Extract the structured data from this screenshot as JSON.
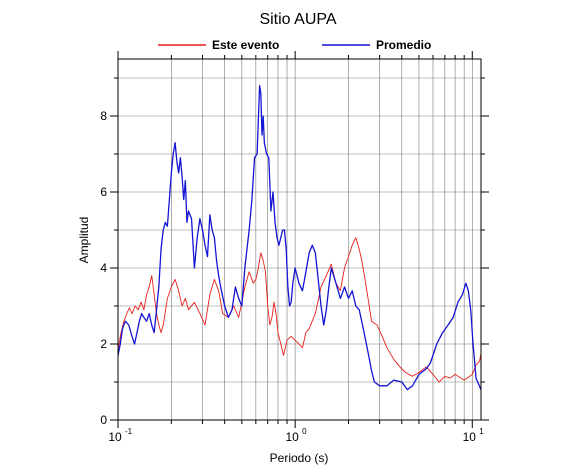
{
  "chart_data": {
    "type": "line",
    "title": "Sitio AUPA",
    "xlabel": "Periodo (s)",
    "ylabel": "Amplitud",
    "xscale": "log",
    "xlim": [
      0.1,
      11.2
    ],
    "ylim": [
      0,
      9.5
    ],
    "x_ticks": [
      {
        "base": "10",
        "exp": "-1",
        "value": 0.1
      },
      {
        "base": "10",
        "exp": "0",
        "value": 1
      },
      {
        "base": "10",
        "exp": "1",
        "value": 10
      }
    ],
    "y_ticks": [
      {
        "label": "0",
        "value": 0
      },
      {
        "label": "2",
        "value": 2
      },
      {
        "label": "4",
        "value": 4
      },
      {
        "label": "6",
        "value": 6
      },
      {
        "label": "8",
        "value": 8
      }
    ],
    "grid": true,
    "legend_position": "top-center",
    "series": [
      {
        "name": "Este evento",
        "color": "#e8211c",
        "points": [
          [
            0.1,
            1.85
          ],
          [
            0.104,
            2.3
          ],
          [
            0.108,
            2.6
          ],
          [
            0.112,
            2.8
          ],
          [
            0.116,
            2.95
          ],
          [
            0.12,
            2.8
          ],
          [
            0.125,
            3.0
          ],
          [
            0.13,
            2.9
          ],
          [
            0.135,
            3.1
          ],
          [
            0.14,
            2.9
          ],
          [
            0.145,
            3.3
          ],
          [
            0.15,
            3.5
          ],
          [
            0.155,
            3.8
          ],
          [
            0.16,
            3.3
          ],
          [
            0.165,
            2.8
          ],
          [
            0.17,
            2.5
          ],
          [
            0.175,
            2.3
          ],
          [
            0.18,
            2.5
          ],
          [
            0.19,
            3.2
          ],
          [
            0.2,
            3.5
          ],
          [
            0.21,
            3.7
          ],
          [
            0.22,
            3.4
          ],
          [
            0.23,
            3.0
          ],
          [
            0.24,
            3.2
          ],
          [
            0.25,
            2.9
          ],
          [
            0.27,
            3.1
          ],
          [
            0.29,
            2.8
          ],
          [
            0.31,
            2.5
          ],
          [
            0.32,
            2.9
          ],
          [
            0.33,
            3.3
          ],
          [
            0.35,
            3.7
          ],
          [
            0.37,
            3.4
          ],
          [
            0.39,
            2.8
          ],
          [
            0.42,
            2.7
          ],
          [
            0.45,
            3.0
          ],
          [
            0.48,
            2.7
          ],
          [
            0.5,
            3.1
          ],
          [
            0.52,
            3.5
          ],
          [
            0.55,
            3.9
          ],
          [
            0.58,
            3.6
          ],
          [
            0.6,
            3.7
          ],
          [
            0.62,
            4.0
          ],
          [
            0.64,
            4.4
          ],
          [
            0.66,
            4.2
          ],
          [
            0.68,
            3.9
          ],
          [
            0.7,
            3.0
          ],
          [
            0.72,
            2.5
          ],
          [
            0.74,
            2.7
          ],
          [
            0.76,
            3.1
          ],
          [
            0.78,
            2.8
          ],
          [
            0.8,
            2.3
          ],
          [
            0.83,
            2.0
          ],
          [
            0.86,
            1.7
          ],
          [
            0.9,
            2.1
          ],
          [
            0.95,
            2.2
          ],
          [
            1.0,
            2.1
          ],
          [
            1.05,
            2.0
          ],
          [
            1.1,
            1.9
          ],
          [
            1.15,
            2.3
          ],
          [
            1.2,
            2.4
          ],
          [
            1.3,
            2.8
          ],
          [
            1.4,
            3.5
          ],
          [
            1.5,
            3.8
          ],
          [
            1.6,
            4.1
          ],
          [
            1.7,
            3.6
          ],
          [
            1.8,
            3.4
          ],
          [
            1.9,
            4.0
          ],
          [
            2.0,
            4.3
          ],
          [
            2.1,
            4.6
          ],
          [
            2.2,
            4.8
          ],
          [
            2.3,
            4.5
          ],
          [
            2.4,
            4.1
          ],
          [
            2.5,
            3.6
          ],
          [
            2.6,
            3.1
          ],
          [
            2.7,
            2.6
          ],
          [
            2.9,
            2.5
          ],
          [
            3.1,
            2.2
          ],
          [
            3.3,
            1.9
          ],
          [
            3.6,
            1.6
          ],
          [
            3.9,
            1.4
          ],
          [
            4.2,
            1.25
          ],
          [
            4.6,
            1.15
          ],
          [
            5.0,
            1.25
          ],
          [
            5.5,
            1.4
          ],
          [
            6.0,
            1.2
          ],
          [
            6.5,
            1.0
          ],
          [
            7.0,
            1.15
          ],
          [
            7.5,
            1.1
          ],
          [
            8.0,
            1.2
          ],
          [
            9.0,
            1.05
          ],
          [
            10.0,
            1.2
          ],
          [
            10.5,
            1.45
          ],
          [
            11.0,
            1.55
          ],
          [
            11.2,
            1.75
          ]
        ]
      },
      {
        "name": "Promedio",
        "color": "#1414d4",
        "points": [
          [
            0.1,
            1.7
          ],
          [
            0.103,
            2.0
          ],
          [
            0.106,
            2.4
          ],
          [
            0.11,
            2.6
          ],
          [
            0.115,
            2.5
          ],
          [
            0.12,
            2.2
          ],
          [
            0.124,
            2.0
          ],
          [
            0.128,
            2.3
          ],
          [
            0.132,
            2.6
          ],
          [
            0.136,
            2.8
          ],
          [
            0.14,
            2.7
          ],
          [
            0.145,
            2.6
          ],
          [
            0.15,
            2.8
          ],
          [
            0.155,
            2.5
          ],
          [
            0.16,
            2.3
          ],
          [
            0.165,
            2.9
          ],
          [
            0.17,
            3.5
          ],
          [
            0.175,
            4.5
          ],
          [
            0.18,
            5.0
          ],
          [
            0.185,
            5.2
          ],
          [
            0.19,
            5.1
          ],
          [
            0.195,
            5.8
          ],
          [
            0.2,
            6.5
          ],
          [
            0.205,
            7.0
          ],
          [
            0.21,
            7.3
          ],
          [
            0.215,
            6.8
          ],
          [
            0.22,
            6.5
          ],
          [
            0.225,
            6.9
          ],
          [
            0.23,
            6.4
          ],
          [
            0.235,
            5.8
          ],
          [
            0.24,
            6.3
          ],
          [
            0.245,
            5.2
          ],
          [
            0.25,
            5.5
          ],
          [
            0.26,
            5.3
          ],
          [
            0.27,
            4.0
          ],
          [
            0.275,
            4.4
          ],
          [
            0.28,
            4.8
          ],
          [
            0.29,
            5.3
          ],
          [
            0.3,
            5.0
          ],
          [
            0.31,
            4.6
          ],
          [
            0.32,
            4.3
          ],
          [
            0.33,
            5.4
          ],
          [
            0.34,
            5.0
          ],
          [
            0.35,
            4.8
          ],
          [
            0.36,
            4.2
          ],
          [
            0.37,
            3.8
          ],
          [
            0.38,
            3.5
          ],
          [
            0.4,
            3.0
          ],
          [
            0.42,
            2.7
          ],
          [
            0.44,
            2.9
          ],
          [
            0.46,
            3.5
          ],
          [
            0.48,
            3.2
          ],
          [
            0.5,
            3.0
          ],
          [
            0.52,
            4.0
          ],
          [
            0.55,
            5.0
          ],
          [
            0.57,
            5.8
          ],
          [
            0.59,
            6.9
          ],
          [
            0.61,
            7.0
          ],
          [
            0.63,
            8.8
          ],
          [
            0.64,
            8.6
          ],
          [
            0.65,
            7.5
          ],
          [
            0.66,
            8.0
          ],
          [
            0.67,
            7.3
          ],
          [
            0.69,
            7.0
          ],
          [
            0.71,
            6.9
          ],
          [
            0.73,
            5.5
          ],
          [
            0.75,
            6.0
          ],
          [
            0.77,
            5.2
          ],
          [
            0.79,
            4.8
          ],
          [
            0.81,
            4.6
          ],
          [
            0.83,
            4.8
          ],
          [
            0.85,
            5.0
          ],
          [
            0.87,
            5.0
          ],
          [
            0.89,
            4.5
          ],
          [
            0.91,
            3.5
          ],
          [
            0.93,
            3.0
          ],
          [
            0.95,
            3.1
          ],
          [
            0.97,
            3.6
          ],
          [
            1.0,
            4.0
          ],
          [
            1.05,
            3.6
          ],
          [
            1.1,
            3.4
          ],
          [
            1.15,
            3.9
          ],
          [
            1.2,
            4.4
          ],
          [
            1.25,
            4.6
          ],
          [
            1.3,
            4.4
          ],
          [
            1.35,
            3.7
          ],
          [
            1.4,
            3.0
          ],
          [
            1.45,
            2.5
          ],
          [
            1.5,
            2.9
          ],
          [
            1.55,
            3.5
          ],
          [
            1.6,
            4.0
          ],
          [
            1.7,
            3.6
          ],
          [
            1.8,
            3.2
          ],
          [
            1.9,
            3.5
          ],
          [
            2.0,
            3.2
          ],
          [
            2.1,
            3.4
          ],
          [
            2.2,
            3.0
          ],
          [
            2.3,
            2.9
          ],
          [
            2.4,
            2.5
          ],
          [
            2.5,
            2.1
          ],
          [
            2.6,
            1.7
          ],
          [
            2.7,
            1.3
          ],
          [
            2.8,
            1.0
          ],
          [
            3.0,
            0.9
          ],
          [
            3.3,
            0.9
          ],
          [
            3.6,
            1.05
          ],
          [
            4.0,
            1.0
          ],
          [
            4.3,
            0.8
          ],
          [
            4.6,
            0.9
          ],
          [
            5.0,
            1.2
          ],
          [
            5.5,
            1.35
          ],
          [
            5.8,
            1.5
          ],
          [
            6.3,
            2.0
          ],
          [
            6.8,
            2.3
          ],
          [
            7.3,
            2.5
          ],
          [
            7.8,
            2.7
          ],
          [
            8.3,
            3.1
          ],
          [
            8.8,
            3.3
          ],
          [
            9.2,
            3.6
          ],
          [
            9.5,
            3.4
          ],
          [
            9.8,
            2.9
          ],
          [
            10.1,
            2.0
          ],
          [
            10.5,
            1.1
          ],
          [
            11.2,
            0.8
          ]
        ]
      }
    ]
  }
}
